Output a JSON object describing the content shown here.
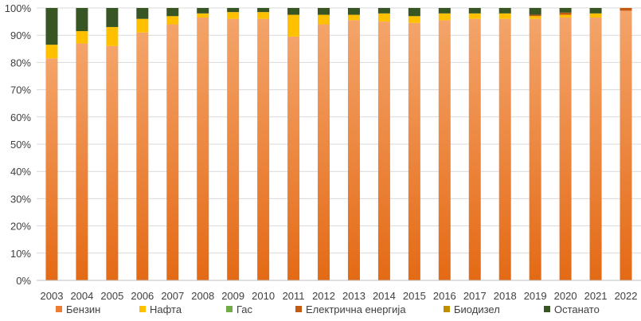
{
  "chart_data": {
    "type": "bar",
    "stacked": true,
    "percent": true,
    "categories": [
      "2003",
      "2004",
      "2005",
      "2006",
      "2007",
      "2008",
      "2009",
      "2010",
      "2011",
      "2012",
      "2013",
      "2014",
      "2015",
      "2016",
      "2017",
      "2018",
      "2019",
      "2020",
      "2021",
      "2022"
    ],
    "series": [
      {
        "name": "Бензин",
        "color": "#ED7D31",
        "values": [
          81.5,
          87.0,
          86.0,
          91.0,
          94.0,
          96.5,
          96.0,
          96.0,
          89.5,
          94.0,
          95.5,
          95.0,
          94.5,
          95.5,
          96.0,
          96.0,
          96.0,
          96.5,
          96.5,
          99.0
        ]
      },
      {
        "name": "Нафта",
        "color": "#FFC000",
        "values": [
          5.0,
          4.5,
          7.0,
          5.0,
          3.0,
          1.5,
          2.5,
          2.5,
          8.0,
          3.5,
          2.0,
          3.0,
          2.5,
          2.5,
          2.0,
          2.0,
          1.0,
          1.0,
          1.5,
          0.0
        ]
      },
      {
        "name": "Гас",
        "color": "#70AD47",
        "values": [
          0,
          0,
          0,
          0,
          0,
          0,
          0,
          0,
          0,
          0,
          0,
          0,
          0,
          0,
          0,
          0,
          0,
          0,
          0,
          0
        ]
      },
      {
        "name": "Електрична енергија",
        "color": "#C55A11",
        "values": [
          0,
          0,
          0,
          0,
          0,
          0,
          0,
          0,
          0,
          0,
          0,
          0,
          0,
          0,
          0,
          0,
          0.5,
          0.8,
          0,
          1.0
        ]
      },
      {
        "name": "Биодизел",
        "color": "#BF8F00",
        "values": [
          0,
          0,
          0,
          0,
          0,
          0,
          0,
          0,
          0,
          0,
          0,
          0,
          0,
          0,
          0,
          0,
          0,
          0,
          0,
          0
        ]
      },
      {
        "name": "Останато",
        "color": "#375623",
        "values": [
          13.5,
          8.5,
          7.0,
          4.0,
          3.0,
          2.0,
          1.5,
          1.5,
          2.5,
          2.5,
          2.5,
          2.0,
          3.0,
          2.0,
          2.0,
          2.0,
          2.5,
          1.7,
          2.0,
          0.0
        ]
      }
    ],
    "y_ticks": [
      "0%",
      "10%",
      "20%",
      "30%",
      "40%",
      "50%",
      "60%",
      "70%",
      "80%",
      "90%",
      "100%"
    ],
    "ylim": [
      0,
      100
    ],
    "grid": true,
    "legend_position": "bottom"
  }
}
